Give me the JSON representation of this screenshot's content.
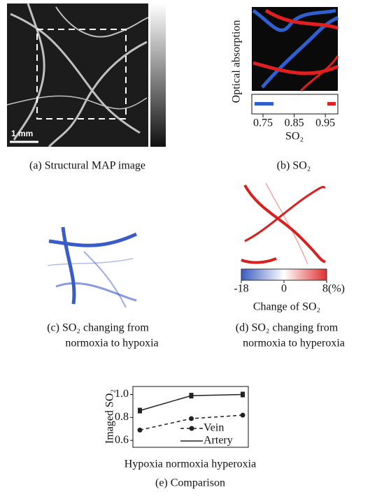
{
  "panels": {
    "a": {
      "caption": "(a) Structural MAP image",
      "scale_bar": "1 mm"
    },
    "b": {
      "caption": "(b) SO₂",
      "ylabel": "Optical absorption",
      "xlabel": "SO₂",
      "xlim": [
        0.714,
        0.99
      ],
      "xticks": [
        0.75,
        0.85,
        0.95
      ]
    },
    "c": {
      "caption": [
        "(c) SO₂ changing from",
        "normoxia to hypoxia"
      ]
    },
    "d": {
      "caption": [
        "(d) SO₂ changing from",
        "normoxia to hyperoxia"
      ],
      "colorbar_label": "Change of SO₂",
      "xlim": [
        -18,
        8
      ],
      "xticks": [
        -18,
        0,
        {
          "value": 8,
          "label": "8(%)"
        }
      ]
    },
    "e": {
      "caption": "(e) Comparison"
    }
  },
  "chart_data": {
    "type": "line",
    "ylabel": "Imaged SO₂",
    "xlabel": "Hypoxia normoxia hyperoxia",
    "categories": [
      null,
      null,
      null
    ],
    "series": [
      {
        "name": "Vein",
        "color": "#222222",
        "values": [
          0.69,
          0.79,
          0.82
        ]
      },
      {
        "name": "Artery",
        "color": "#222222",
        "values": [
          0.86,
          0.99,
          1.0
        ]
      }
    ],
    "ylim": [
      0.54,
      1.07
    ],
    "yticks": [
      0.6,
      0.8,
      {
        "value": 1.0,
        "label": "1.0"
      }
    ]
  }
}
